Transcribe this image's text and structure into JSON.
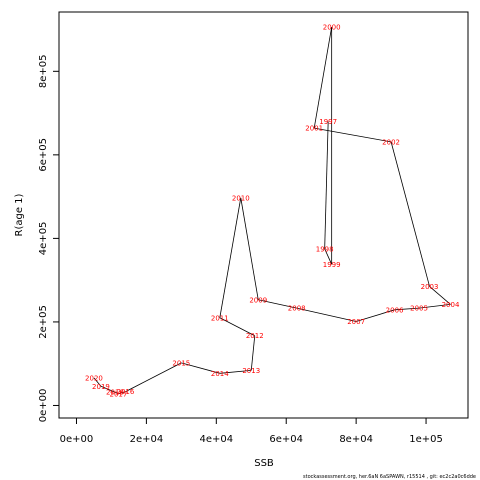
{
  "chart_data": {
    "type": "line",
    "xlabel": "SSB",
    "ylabel": "R(age 1)",
    "xlim": [
      -5000,
      112000
    ],
    "ylim": [
      -30000,
      942000
    ],
    "xticks": [
      {
        "value": 0,
        "label": "0e+00"
      },
      {
        "value": 20000,
        "label": "2e+04"
      },
      {
        "value": 40000,
        "label": "4e+04"
      },
      {
        "value": 60000,
        "label": "6e+04"
      },
      {
        "value": 80000,
        "label": "8e+04"
      },
      {
        "value": 100000,
        "label": "1e+05"
      }
    ],
    "yticks": [
      {
        "value": 0,
        "label": "0e+00"
      },
      {
        "value": 200000,
        "label": "2e+05"
      },
      {
        "value": 400000,
        "label": "4e+05"
      },
      {
        "value": 600000,
        "label": "6e+05"
      },
      {
        "value": 800000,
        "label": "8e+05"
      }
    ],
    "grid": false,
    "points": [
      {
        "label": "1997",
        "x": 72000,
        "y": 680000
      },
      {
        "label": "1998",
        "x": 71000,
        "y": 375000
      },
      {
        "label": "1999",
        "x": 73000,
        "y": 338000
      },
      {
        "label": "2000",
        "x": 73000,
        "y": 906000
      },
      {
        "label": "2001",
        "x": 68000,
        "y": 664000
      },
      {
        "label": "2002",
        "x": 90000,
        "y": 631000
      },
      {
        "label": "2003",
        "x": 101000,
        "y": 285000
      },
      {
        "label": "2004",
        "x": 107000,
        "y": 242000
      },
      {
        "label": "2005",
        "x": 98000,
        "y": 233000
      },
      {
        "label": "2006",
        "x": 91000,
        "y": 229000
      },
      {
        "label": "2007",
        "x": 80000,
        "y": 201000
      },
      {
        "label": "2008",
        "x": 63000,
        "y": 233000
      },
      {
        "label": "2009",
        "x": 52000,
        "y": 253000
      },
      {
        "label": "2010",
        "x": 47000,
        "y": 497000
      },
      {
        "label": "2011",
        "x": 41000,
        "y": 210000
      },
      {
        "label": "2012",
        "x": 51000,
        "y": 167000
      },
      {
        "label": "2013",
        "x": 50000,
        "y": 84000
      },
      {
        "label": "2014",
        "x": 41000,
        "y": 77000
      },
      {
        "label": "2015",
        "x": 30000,
        "y": 102000
      },
      {
        "label": "2016",
        "x": 14000,
        "y": 33000
      },
      {
        "label": "2017",
        "x": 12000,
        "y": 28000
      },
      {
        "label": "2018",
        "x": 11000,
        "y": 32000
      },
      {
        "label": "2019",
        "x": 7000,
        "y": 46000
      },
      {
        "label": "2020",
        "x": 5000,
        "y": 66000
      }
    ]
  },
  "footer_text": "stockassessment.org,  her.6aN  6aSPAWN,  r15514 ,  git:  ec2c2a0c6dde"
}
